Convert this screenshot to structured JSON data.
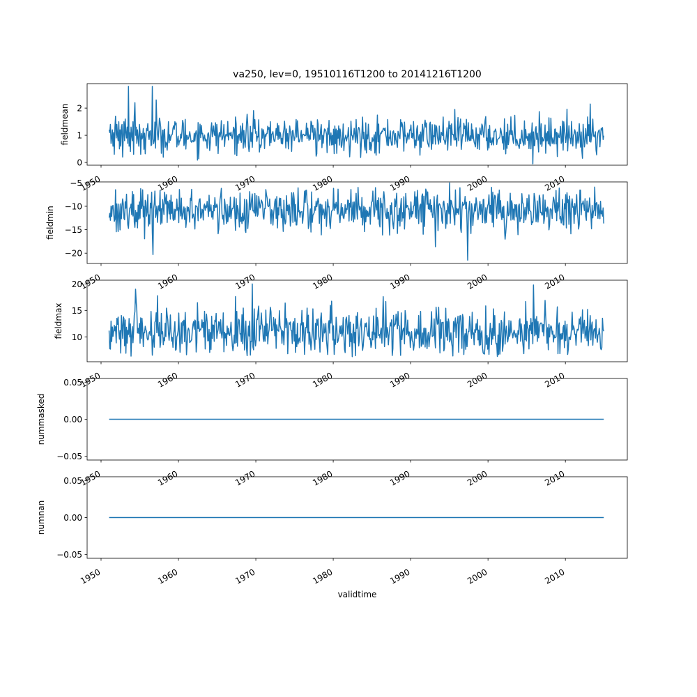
{
  "figure": {
    "title": "va250, lev=0, 19510116T1200 to 20141216T1200",
    "xlabel": "validtime"
  },
  "chart_data": [
    {
      "type": "line",
      "ylabel": "fieldmean",
      "xlim": [
        1948.2,
        2018.0
      ],
      "ylim": [
        -0.1,
        2.9
      ],
      "yticks": [
        0,
        1,
        2
      ],
      "ytick_labels": [
        "0",
        "1",
        "2"
      ],
      "xticks": [
        1950,
        1960,
        1970,
        1980,
        1990,
        2000,
        2010
      ],
      "xtick_labels": [
        "1950",
        "1960",
        "1970",
        "1980",
        "1990",
        "2000",
        "2010"
      ],
      "line_color": "#1f77b4",
      "x_range": [
        "1951-01",
        "2014-12"
      ],
      "mean": 1.0,
      "spread": 0.32,
      "values": [
        1.2,
        1.1,
        1.4,
        0.7,
        0.9,
        1.2,
        0.6,
        1.1,
        0.3,
        1.3,
        1.7,
        0.9,
        1.4,
        1.0,
        0.8,
        1.5,
        0.5,
        1.2,
        0.6,
        1.3,
        1.4,
        0.2,
        1.0,
        1.5,
        0.8,
        1.6,
        1.1,
        0.9,
        1.3,
        0.7,
        2.8,
        0.6,
        1.1,
        0.4,
        1.3,
        1.0,
        0.8,
        1.5,
        0.3,
        1.7,
        2.2,
        1.0,
        1.3,
        0.7,
        1.2,
        0.9,
        0.6,
        1.4,
        1.1,
        0.3
      ],
      "extremes": [
        {
          "date": "1956-08",
          "value": 2.8
        },
        {
          "date": "1957-02",
          "value": 2.3
        },
        {
          "date": "2005-10",
          "value": -0.05
        },
        {
          "date": "2013-03",
          "value": 2.15
        }
      ]
    },
    {
      "type": "line",
      "ylabel": "fieldmin",
      "xlim": [
        1948.2,
        2018.0
      ],
      "ylim": [
        -22.2,
        -4.8
      ],
      "yticks": [
        -20,
        -15,
        -10,
        -5
      ],
      "ytick_labels": [
        "−20",
        "−15",
        "−10",
        "−5"
      ],
      "xticks": [
        1950,
        1960,
        1970,
        1980,
        1990,
        2000,
        2010
      ],
      "xtick_labels": [
        "1950",
        "1960",
        "1970",
        "1980",
        "1990",
        "2000",
        "2010"
      ],
      "line_color": "#1f77b4",
      "x_range": [
        "1951-01",
        "2014-12"
      ],
      "mean": -10.8,
      "spread": 2.3,
      "extremes": [
        {
          "date": "1956-09",
          "value": -20.3
        },
        {
          "date": "1997-05",
          "value": -21.5
        },
        {
          "date": "1995-01",
          "value": -5.0
        }
      ]
    },
    {
      "type": "line",
      "ylabel": "fieldmax",
      "xlim": [
        1948.2,
        2018.0
      ],
      "ylim": [
        5.3,
        20.7
      ],
      "yticks": [
        10,
        15,
        20
      ],
      "ytick_labels": [
        "10",
        "15",
        "20"
      ],
      "xticks": [
        1950,
        1960,
        1970,
        1980,
        1990,
        2000,
        2010
      ],
      "xtick_labels": [
        "1950",
        "1960",
        "1970",
        "1980",
        "1990",
        "2000",
        "2010"
      ],
      "line_color": "#1f77b4",
      "x_range": [
        "1951-01",
        "2014-12"
      ],
      "mean": 11.0,
      "spread": 2.2,
      "extremes": [
        {
          "date": "1969-07",
          "value": 20.0
        },
        {
          "date": "2005-11",
          "value": 19.8
        },
        {
          "date": "1954-06",
          "value": 19.0
        },
        {
          "date": "1988-09",
          "value": 6.5
        }
      ]
    },
    {
      "type": "line",
      "ylabel": "nummasked",
      "xlim": [
        1948.2,
        2018.0
      ],
      "ylim": [
        -0.055,
        0.055
      ],
      "yticks": [
        -0.05,
        0.0,
        0.05
      ],
      "ytick_labels": [
        "−0.05",
        "0.00",
        "0.05"
      ],
      "xticks": [
        1950,
        1960,
        1970,
        1980,
        1990,
        2000,
        2010
      ],
      "xtick_labels": [
        "1950",
        "1960",
        "1970",
        "1980",
        "1990",
        "2000",
        "2010"
      ],
      "line_color": "#1f77b4",
      "x": [
        "1951-01",
        "2014-12"
      ],
      "y": [
        0,
        0
      ]
    },
    {
      "type": "line",
      "ylabel": "numnan",
      "xlim": [
        1948.2,
        2018.0
      ],
      "ylim": [
        -0.055,
        0.055
      ],
      "yticks": [
        -0.05,
        0.0,
        0.05
      ],
      "ytick_labels": [
        "−0.05",
        "0.00",
        "0.05"
      ],
      "xticks": [
        1950,
        1960,
        1970,
        1980,
        1990,
        2000,
        2010
      ],
      "xtick_labels": [
        "1950",
        "1960",
        "1970",
        "1980",
        "1990",
        "2000",
        "2010"
      ],
      "line_color": "#1f77b4",
      "x": [
        "1951-01",
        "2014-12"
      ],
      "y": [
        0,
        0
      ]
    }
  ]
}
